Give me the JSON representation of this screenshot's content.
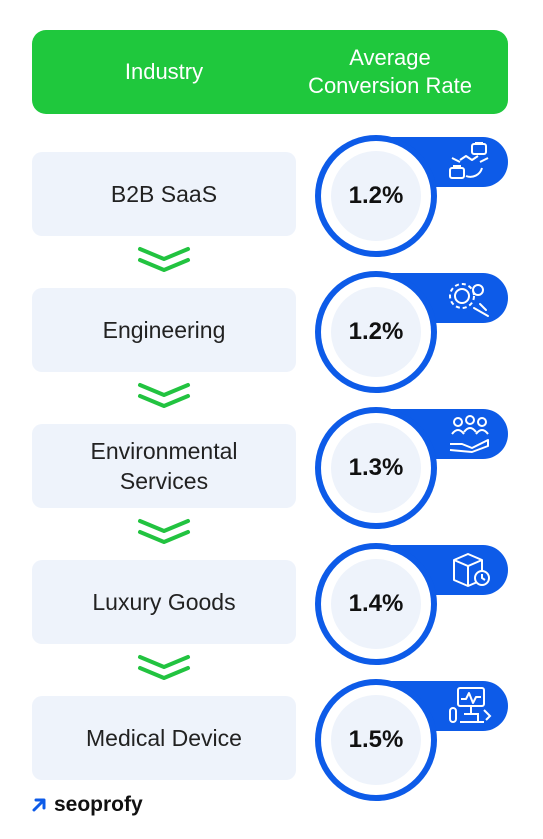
{
  "header": {
    "col1": "Industry",
    "col2_line1": "Average",
    "col2_line2": "Conversion Rate"
  },
  "chart_data": {
    "type": "table",
    "columns": [
      "Industry",
      "Average Conversion Rate"
    ],
    "rows": [
      {
        "industry": "B2B SaaS",
        "industry_lines": [
          "B2B SaaS"
        ],
        "value": 1.2,
        "value_label": "1.2%",
        "icon": "business-handshake-icon"
      },
      {
        "industry": "Engineering",
        "industry_lines": [
          "Engineering"
        ],
        "value": 1.2,
        "value_label": "1.2%",
        "icon": "gears-tools-icon"
      },
      {
        "industry": "Environmental Services",
        "industry_lines": [
          "Environmental",
          "Services"
        ],
        "value": 1.3,
        "value_label": "1.3%",
        "icon": "team-hand-icon"
      },
      {
        "industry": "Luxury Goods",
        "industry_lines": [
          "Luxury Goods"
        ],
        "value": 1.4,
        "value_label": "1.4%",
        "icon": "shipping-box-icon"
      },
      {
        "industry": "Medical Device",
        "industry_lines": [
          "Medical Device"
        ],
        "value": 1.5,
        "value_label": "1.5%",
        "icon": "medical-equipment-icon"
      }
    ]
  },
  "brand": {
    "name": "seoprofy",
    "icon": "arrow-up-right-icon"
  },
  "colors": {
    "header_green": "#1fc83d",
    "accent_blue": "#0d5be8",
    "box_bg": "#eef3fb",
    "arrow_green": "#22c340"
  }
}
